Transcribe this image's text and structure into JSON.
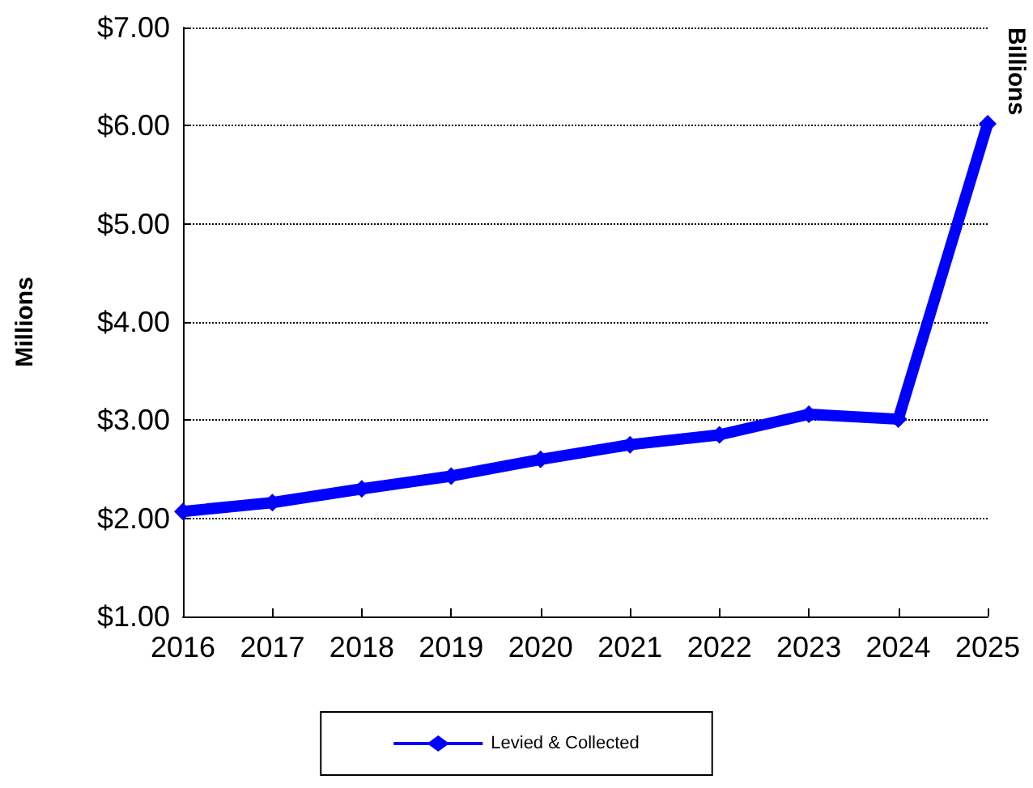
{
  "chart_data": {
    "type": "line",
    "ylabel": "Millions",
    "y2label": "Billions",
    "categories": [
      "2016",
      "2017",
      "2018",
      "2019",
      "2020",
      "2021",
      "2022",
      "2023",
      "2024",
      "2025"
    ],
    "series": [
      {
        "name": "Levied & Collected",
        "color": "#0000ff",
        "values": [
          2.07,
          2.16,
          2.3,
          2.43,
          2.6,
          2.75,
          2.85,
          3.06,
          3.01,
          6.02
        ]
      }
    ],
    "ylim": [
      1,
      7
    ],
    "yticks": [
      {
        "value": 1,
        "label": "$1.00"
      },
      {
        "value": 2,
        "label": "$2.00"
      },
      {
        "value": 3,
        "label": "$3.00"
      },
      {
        "value": 4,
        "label": "$4.00"
      },
      {
        "value": 5,
        "label": "$5.00"
      },
      {
        "value": 6,
        "label": "$6.00"
      },
      {
        "value": 7,
        "label": "$7.00"
      }
    ],
    "grid": "y",
    "legend": "bottom",
    "marker": "diamond",
    "line_style": "solid"
  }
}
